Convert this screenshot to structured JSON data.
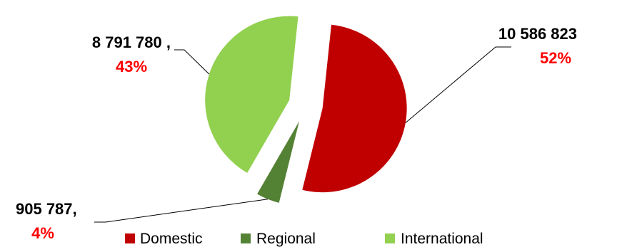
{
  "chart_data": {
    "type": "pie",
    "exploded": true,
    "legend_position": "bottom",
    "slices": [
      {
        "name": "Domestic",
        "value": 10586823,
        "value_label": "10 586 823",
        "percent_label": "52%",
        "color": "#c00000"
      },
      {
        "name": "Regional",
        "value": 905787,
        "value_label": "905 787,",
        "percent_label": "4%",
        "color": "#548235"
      },
      {
        "name": "International",
        "value": 8791780,
        "value_label": "8 791 780 ,",
        "percent_label": "43%",
        "color": "#92d050"
      }
    ]
  }
}
